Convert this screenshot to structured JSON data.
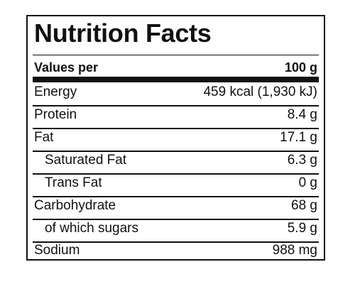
{
  "title": "Nutrition Facts",
  "header": {
    "label": "Values per",
    "value": "100 g"
  },
  "rows": [
    {
      "label": "Energy",
      "value": "459 kcal (1,930 kJ)",
      "indent": false
    },
    {
      "label": "Protein",
      "value": "8.4 g",
      "indent": false
    },
    {
      "label": "Fat",
      "value": "17.1 g",
      "indent": false
    },
    {
      "label": "Saturated Fat",
      "value": "6.3 g",
      "indent": true
    },
    {
      "label": "Trans Fat",
      "value": "0 g",
      "indent": true
    },
    {
      "label": "Carbohydrate",
      "value": "68 g",
      "indent": false
    },
    {
      "label": "of which sugars",
      "value": "5.9 g",
      "indent": true
    },
    {
      "label": "Sodium",
      "value": "988 mg",
      "indent": false
    }
  ]
}
